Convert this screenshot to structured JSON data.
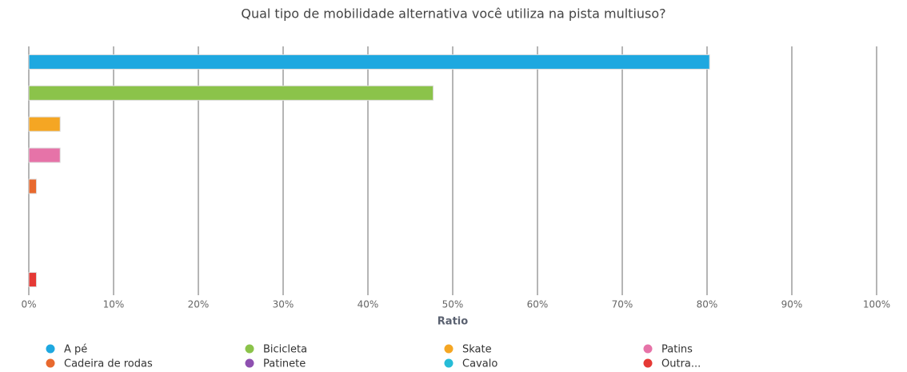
{
  "chart_data": {
    "type": "hbar",
    "title": "Qual tipo de mobilidade alternativa você utiliza na pista multiuso?",
    "x_label": "Ratio",
    "categories": [
      "A pé",
      "Bicicleta",
      "Skate",
      "Patins",
      "Cadeira de rodas",
      "Patinete",
      "Cavalo",
      "Outra..."
    ],
    "values": [
      80.3,
      47.7,
      3.7,
      3.7,
      0.9,
      0,
      0,
      0.9
    ],
    "colors": [
      "#1ea8e0",
      "#8bc34a",
      "#f5a623",
      "#e673a8",
      "#e8692e",
      "#8e50b0",
      "#26bcd7",
      "#e53935"
    ],
    "xlim": [
      0,
      100
    ],
    "xticks": [
      {
        "value": 0,
        "label": "0%"
      },
      {
        "value": 10,
        "label": "10%"
      },
      {
        "value": 20,
        "label": "20%"
      },
      {
        "value": 30,
        "label": "30%"
      },
      {
        "value": 40,
        "label": "40%"
      },
      {
        "value": 50,
        "label": "50%"
      },
      {
        "value": 60,
        "label": "60%"
      },
      {
        "value": 70,
        "label": "70%"
      },
      {
        "value": 80,
        "label": "80%"
      },
      {
        "value": 90,
        "label": "90%"
      },
      {
        "value": 100,
        "label": "100%"
      }
    ],
    "grid": true
  }
}
